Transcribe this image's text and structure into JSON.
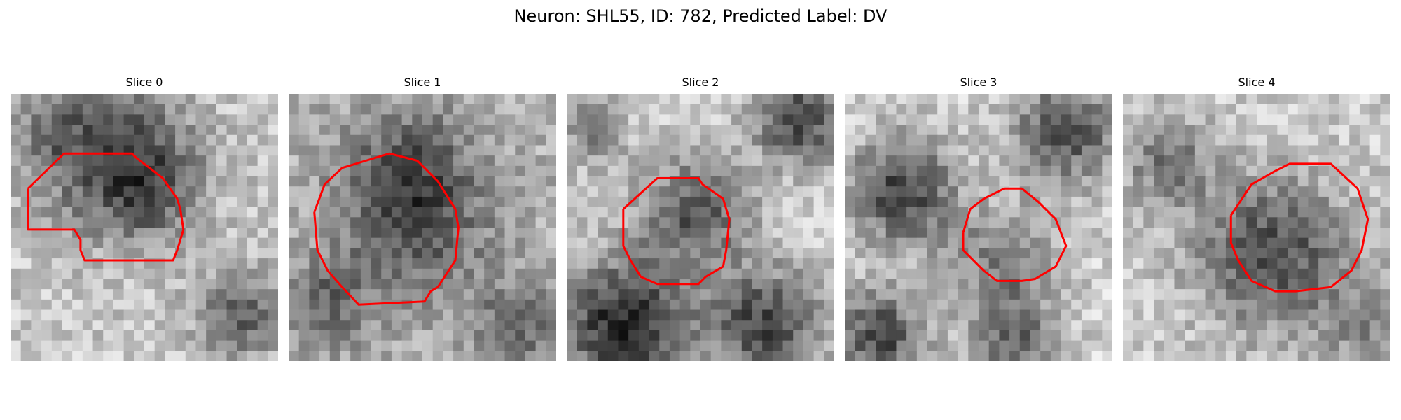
{
  "figure": {
    "suptitle": "Neuron: SHL55, ID: 782, Predicted Label: DV",
    "contour_color": "#ff0000",
    "colormap": "gray"
  },
  "slices": [
    {
      "title": "Slice 0"
    },
    {
      "title": "Slice 1"
    },
    {
      "title": "Slice 2"
    },
    {
      "title": "Slice 3"
    },
    {
      "title": "Slice 4"
    }
  ]
}
